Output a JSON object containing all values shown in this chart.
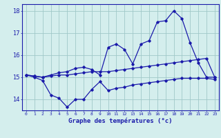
{
  "xlabel": "Graphe des températures (°c)",
  "hours": [
    0,
    1,
    2,
    3,
    4,
    5,
    6,
    7,
    8,
    9,
    10,
    11,
    12,
    13,
    14,
    15,
    16,
    17,
    18,
    19,
    20,
    21,
    22,
    23
  ],
  "line_max": [
    15.1,
    15.05,
    15.0,
    15.1,
    15.2,
    15.25,
    15.4,
    15.45,
    15.35,
    15.1,
    16.35,
    16.5,
    16.25,
    15.6,
    16.5,
    16.65,
    17.5,
    17.55,
    18.0,
    17.65,
    16.55,
    15.65,
    15.0,
    15.0
  ],
  "line_mid": [
    15.1,
    15.05,
    15.0,
    15.05,
    15.1,
    15.1,
    15.15,
    15.2,
    15.25,
    15.25,
    15.25,
    15.3,
    15.35,
    15.4,
    15.45,
    15.5,
    15.55,
    15.6,
    15.65,
    15.7,
    15.75,
    15.8,
    15.85,
    15.0
  ],
  "line_min": [
    15.1,
    15.0,
    14.85,
    14.2,
    14.05,
    13.65,
    14.0,
    14.0,
    14.45,
    14.8,
    14.4,
    14.5,
    14.55,
    14.65,
    14.7,
    14.75,
    14.8,
    14.85,
    14.9,
    14.95,
    14.95,
    14.95,
    14.95,
    14.9
  ],
  "line_color": "#1a1aaa",
  "bg_color": "#d4eeed",
  "grid_color": "#a0c8c8",
  "ylim": [
    13.5,
    18.3
  ],
  "yticks": [
    14,
    15,
    16,
    17,
    18
  ],
  "xtick_labels": [
    "0",
    "1",
    "2",
    "3",
    "4",
    "5",
    "6",
    "7",
    "8",
    "9",
    "10",
    "11",
    "12",
    "13",
    "14",
    "15",
    "16",
    "17",
    "18",
    "19",
    "20",
    "21",
    "22",
    "23"
  ]
}
